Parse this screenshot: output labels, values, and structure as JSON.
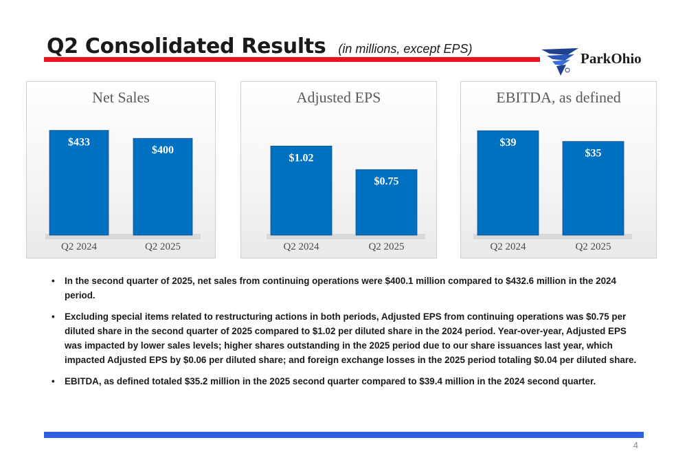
{
  "header": {
    "title": "Q2 Consolidated Results",
    "subtitle": "(in millions, except EPS)",
    "logo_text": "ParkOhio",
    "accent_red": "#e8141e",
    "accent_blue": "#2f5fe0",
    "bar_color": "#0070c0"
  },
  "chart_data": [
    {
      "type": "bar",
      "title": "Net Sales",
      "categories": [
        "Q2 2024",
        "Q2 2025"
      ],
      "values": [
        433,
        400
      ],
      "labels": [
        "$433",
        "$400"
      ],
      "ylim": [
        0,
        520
      ]
    },
    {
      "type": "bar",
      "title": "Adjusted EPS",
      "categories": [
        "Q2 2024",
        "Q2 2025"
      ],
      "values": [
        1.02,
        0.75
      ],
      "labels": [
        "$1.02",
        "$0.75"
      ],
      "ylim": [
        0,
        1.44
      ]
    },
    {
      "type": "bar",
      "title": "EBITDA, as defined",
      "categories": [
        "Q2 2024",
        "Q2 2025"
      ],
      "values": [
        39,
        35
      ],
      "labels": [
        "$39",
        "$35"
      ],
      "ylim": [
        0,
        47
      ]
    }
  ],
  "bullets": [
    "In the second quarter of 2025, net sales from continuing operations were $400.1 million compared to $432.6 million in the 2024 period.",
    "Excluding special items related to restructuring actions in both periods, Adjusted EPS from continuing operations was $0.75 per diluted share in the second quarter of 2025 compared to $1.02 per diluted share in the 2024 period. Year-over-year, Adjusted EPS was impacted by lower sales levels; higher shares outstanding in the 2025 period due to our share issuances last year, which impacted Adjusted EPS by $0.06 per diluted share; and foreign exchange losses in the 2025 period totaling $0.04 per diluted share.",
    " EBITDA, as defined totaled $35.2 million in the 2025 second quarter compared to $39.4 million in the 2024 second quarter."
  ],
  "footer": {
    "page_number": "4"
  }
}
